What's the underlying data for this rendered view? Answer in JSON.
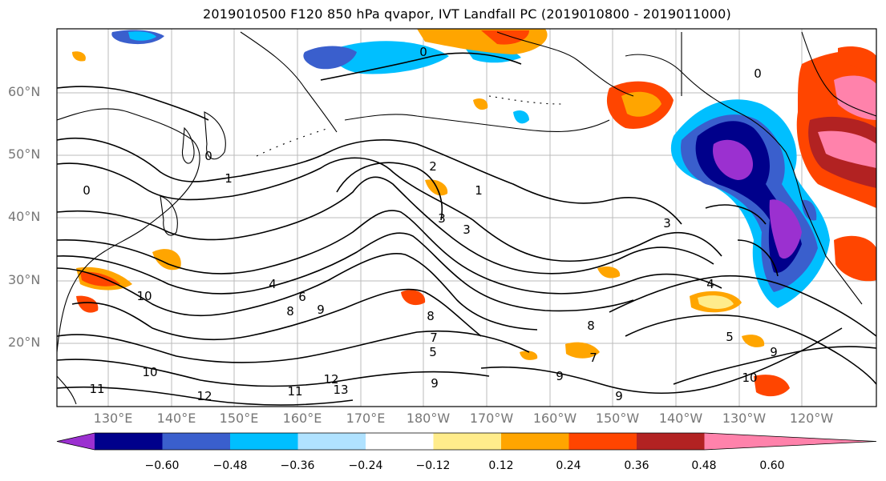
{
  "title": "2019010500 F120 850 hPa qvapor, IVT Landfall PC (2019010800 - 2019011000)",
  "lat_labels": [
    "60°N",
    "50°N",
    "40°N",
    "30°N",
    "20°N"
  ],
  "lon_labels": [
    "130°E",
    "140°E",
    "150°E",
    "160°E",
    "170°E",
    "180°W",
    "170°W",
    "160°W",
    "150°W",
    "140°W",
    "130°W",
    "120°W"
  ],
  "contour_labels": [
    "0",
    "0",
    "0",
    "0",
    "1",
    "1",
    "2",
    "3",
    "3",
    "3",
    "4",
    "4",
    "5",
    "5",
    "6",
    "7",
    "7",
    "8",
    "8",
    "8",
    "9",
    "9",
    "9",
    "9",
    "9",
    "10",
    "10",
    "10",
    "11",
    "11",
    "12",
    "12",
    "13"
  ],
  "colorbar": {
    "ticks": [
      "−0.60",
      "−0.48",
      "−0.36",
      "−0.24",
      "−0.12",
      "0.12",
      "0.24",
      "0.36",
      "0.48",
      "0.60"
    ],
    "colors": [
      "#9b30d0",
      "#00008b",
      "#3a5fcd",
      "#00bfff",
      "#b0e2ff",
      "#ffffff",
      "#ffec8b",
      "#ffa500",
      "#ff4500",
      "#b22222",
      "#ff82ab"
    ]
  }
}
